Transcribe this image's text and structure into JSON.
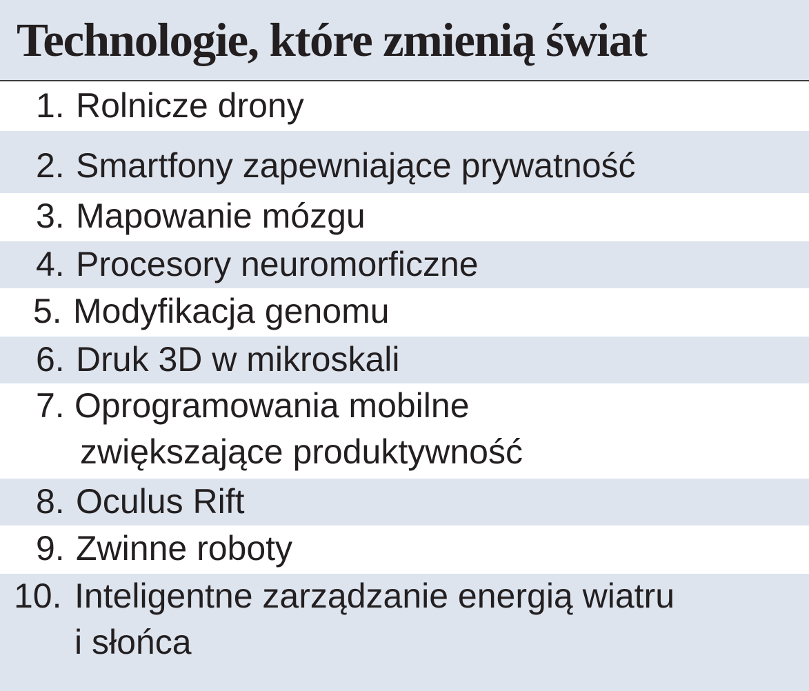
{
  "title": "Technologie, które zmienią świat",
  "items": [
    {
      "number": "1.",
      "lines": [
        "Rolnicze drony"
      ]
    },
    {
      "number": "2.",
      "lines": [
        "Smartfony zapewniające prywatność"
      ]
    },
    {
      "number": "3.",
      "lines": [
        "Mapowanie mózgu"
      ]
    },
    {
      "number": "4.",
      "lines": [
        "Procesory neuromorficzne"
      ]
    },
    {
      "number": "5.",
      "lines": [
        "Modyfikacja genomu"
      ]
    },
    {
      "number": "6.",
      "lines": [
        "Druk 3D w mikroskali"
      ]
    },
    {
      "number": "7.",
      "lines": [
        "Oprogramowania mobilne",
        "zwiększające produktywność"
      ]
    },
    {
      "number": "8.",
      "lines": [
        "Oculus Rift"
      ]
    },
    {
      "number": "9.",
      "lines": [
        "Zwinne roboty"
      ]
    },
    {
      "number": "10.",
      "lines": [
        "Inteligentne zarządzanie energią wiatru",
        "i słońca"
      ]
    }
  ]
}
